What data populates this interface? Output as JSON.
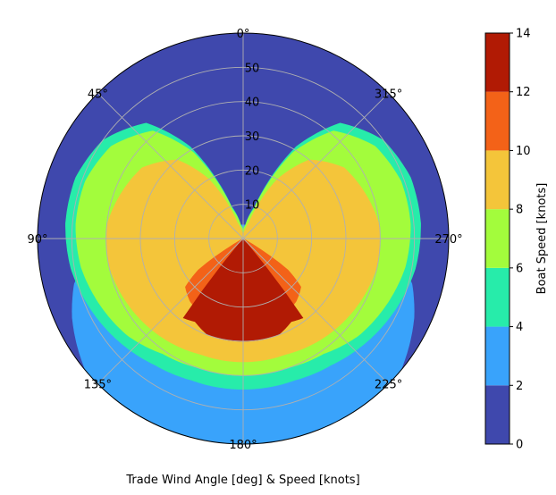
{
  "chart_data": {
    "type": "heatmap",
    "projection": "polar",
    "theta_zero_location": "top",
    "theta_direction": "clockwise",
    "xlabel": "Trade Wind Angle [deg] & Speed [knots]",
    "angle_ticks": [
      {
        "deg": 0,
        "label": "0°"
      },
      {
        "deg": 45,
        "label": "45°"
      },
      {
        "deg": 90,
        "label": "90°"
      },
      {
        "deg": 135,
        "label": "135°"
      },
      {
        "deg": 180,
        "label": "180°"
      },
      {
        "deg": 225,
        "label": "225°"
      },
      {
        "deg": 270,
        "label": "270°"
      },
      {
        "deg": 315,
        "label": "315°"
      }
    ],
    "radial_ticks": [
      {
        "value": 10,
        "label": "10"
      },
      {
        "value": 20,
        "label": "20"
      },
      {
        "value": 30,
        "label": "30"
      },
      {
        "value": 40,
        "label": "40"
      },
      {
        "value": 50,
        "label": "50"
      }
    ],
    "rlim": [
      0,
      60
    ],
    "grid": true,
    "colorbar": {
      "label": "Boat Speed [knots]",
      "levels": [
        0,
        2,
        4,
        6,
        8,
        10,
        12,
        14
      ],
      "tick_labels": [
        "0",
        "2",
        "4",
        "6",
        "8",
        "10",
        "12",
        "14"
      ],
      "colors": [
        "#3f48ad",
        "#39a3fb",
        "#27ecaa",
        "#a3fc3c",
        "#f4c53a",
        "#f36218",
        "#b11a04"
      ],
      "position": "right"
    },
    "contour_boundaries": [
      {
        "level": 2,
        "points": [
          [
            0,
            4
          ],
          [
            15,
            4
          ],
          [
            30,
            5
          ],
          [
            45,
            6
          ],
          [
            60,
            10
          ],
          [
            75,
            29
          ],
          [
            90,
            40
          ],
          [
            105,
            51
          ],
          [
            115,
            55
          ],
          [
            130,
            60
          ],
          [
            150,
            60
          ],
          [
            170,
            60
          ],
          [
            180,
            60
          ]
        ]
      },
      {
        "level": 4,
        "points": [
          [
            0,
            3
          ],
          [
            10,
            4
          ],
          [
            20,
            10
          ],
          [
            30,
            31
          ],
          [
            40,
            44
          ],
          [
            55,
            50
          ],
          [
            70,
            52
          ],
          [
            85,
            52
          ],
          [
            100,
            51
          ],
          [
            115,
            49
          ],
          [
            130,
            47
          ],
          [
            145,
            45
          ],
          [
            160,
            44
          ],
          [
            170,
            44
          ],
          [
            180,
            44
          ]
        ]
      },
      {
        "level": 6,
        "points": [
          [
            0,
            2
          ],
          [
            10,
            4
          ],
          [
            20,
            9
          ],
          [
            30,
            29
          ],
          [
            40,
            41
          ],
          [
            55,
            47
          ],
          [
            70,
            49
          ],
          [
            85,
            49
          ],
          [
            100,
            48
          ],
          [
            115,
            46
          ],
          [
            130,
            44
          ],
          [
            145,
            41
          ],
          [
            160,
            40
          ],
          [
            170,
            40
          ],
          [
            180,
            40
          ]
        ]
      },
      {
        "level": 8,
        "points": [
          [
            0,
            1
          ],
          [
            10,
            2
          ],
          [
            20,
            5
          ],
          [
            30,
            20
          ],
          [
            40,
            30
          ],
          [
            55,
            36
          ],
          [
            70,
            38
          ],
          [
            85,
            40
          ],
          [
            100,
            40
          ],
          [
            115,
            39
          ],
          [
            130,
            38
          ],
          [
            145,
            37
          ],
          [
            160,
            36
          ],
          [
            170,
            36
          ],
          [
            180,
            36
          ]
        ]
      },
      {
        "level": 10,
        "points": [
          [
            0,
            0
          ],
          [
            120,
            0
          ],
          [
            125,
            16
          ],
          [
            130,
            22
          ],
          [
            140,
            24
          ],
          [
            150,
            25
          ],
          [
            160,
            26
          ],
          [
            170,
            27
          ],
          [
            180,
            27
          ]
        ]
      },
      {
        "level": 12,
        "points": [
          [
            0,
            0
          ],
          [
            140,
            0
          ],
          [
            143,
            29
          ],
          [
            150,
            28
          ],
          [
            160,
            30
          ],
          [
            170,
            30
          ],
          [
            180,
            30
          ]
        ]
      }
    ]
  }
}
